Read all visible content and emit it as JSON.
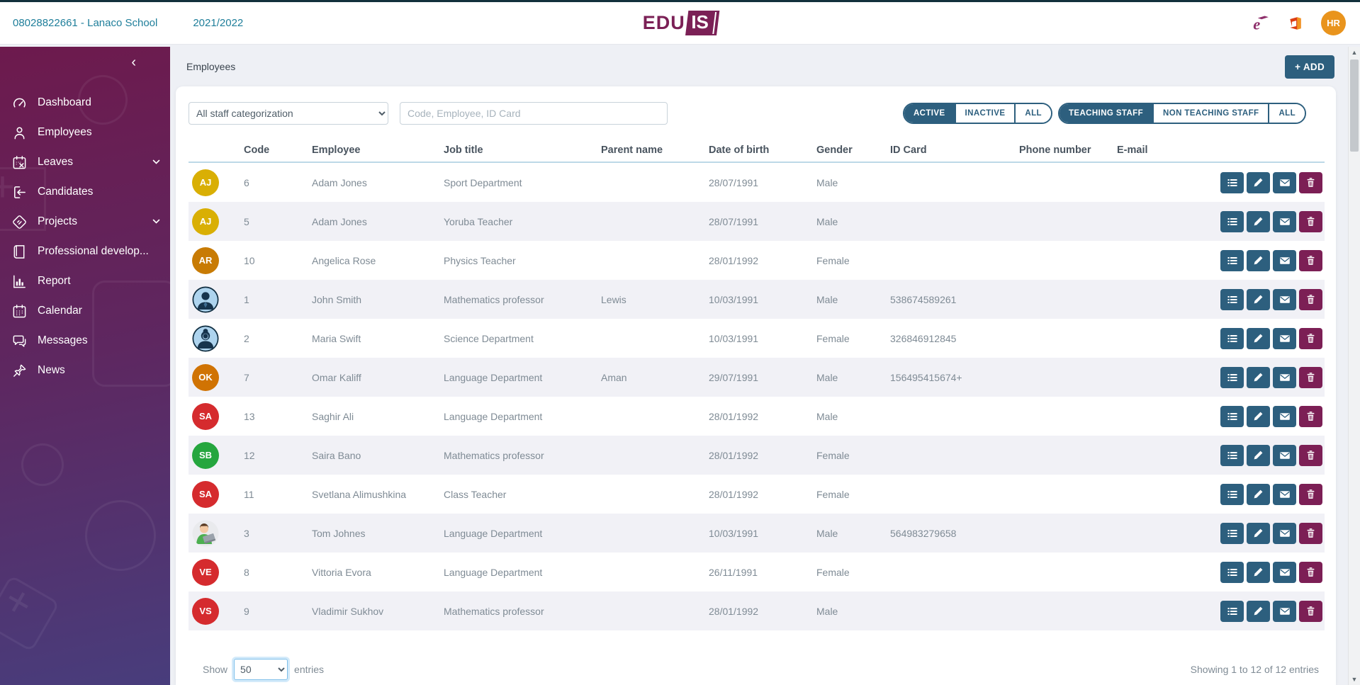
{
  "topbar": {
    "school_link": "08028822661 - Lanaco School",
    "school_year": "2021/2022",
    "logo_edu": "EDU",
    "logo_is": "IS",
    "user_initials": "HR"
  },
  "sidebar": {
    "items": [
      {
        "label": "Dashboard",
        "icon": "gauge",
        "expandable": false
      },
      {
        "label": "Employees",
        "icon": "user",
        "expandable": false
      },
      {
        "label": "Leaves",
        "icon": "calendar-x",
        "expandable": true
      },
      {
        "label": "Candidates",
        "icon": "sign-in",
        "expandable": false
      },
      {
        "label": "Projects",
        "icon": "tags",
        "expandable": true
      },
      {
        "label": "Professional develop...",
        "icon": "book",
        "expandable": false
      },
      {
        "label": "Report",
        "icon": "bar-chart",
        "expandable": false
      },
      {
        "label": "Calendar",
        "icon": "calendar",
        "expandable": false
      },
      {
        "label": "Messages",
        "icon": "chat",
        "expandable": false
      },
      {
        "label": "News",
        "icon": "pin",
        "expandable": false
      }
    ]
  },
  "page": {
    "title": "Employees",
    "add_button": "+ ADD"
  },
  "filters": {
    "staff_categorization_selected": "All staff categorization",
    "search_placeholder": "Code, Employee, ID Card",
    "status_group": [
      {
        "label": "ACTIVE",
        "selected": true
      },
      {
        "label": "INACTIVE",
        "selected": false
      },
      {
        "label": "ALL",
        "selected": false
      }
    ],
    "teaching_group": [
      {
        "label": "TEACHING STAFF",
        "selected": true
      },
      {
        "label": "NON TEACHING STAFF",
        "selected": false
      },
      {
        "label": "ALL",
        "selected": false
      }
    ]
  },
  "table": {
    "columns": [
      "Code",
      "Employee",
      "Job title",
      "Parent name",
      "Date of birth",
      "Gender",
      "ID Card",
      "Phone number",
      "E-mail"
    ],
    "rows": [
      {
        "avatar": {
          "type": "initials",
          "text": "AJ",
          "color": "#d9af04"
        },
        "code": "6",
        "employee": "Adam Jones",
        "job_title": "Sport Department",
        "parent_name": "",
        "date_of_birth": "28/07/1991",
        "gender": "Male",
        "id_card": "",
        "phone_number": "",
        "email": ""
      },
      {
        "avatar": {
          "type": "initials",
          "text": "AJ",
          "color": "#d9af04"
        },
        "code": "5",
        "employee": "Adam Jones",
        "job_title": "Yoruba Teacher",
        "parent_name": "",
        "date_of_birth": "28/07/1991",
        "gender": "Male",
        "id_card": "",
        "phone_number": "",
        "email": ""
      },
      {
        "avatar": {
          "type": "initials",
          "text": "AR",
          "color": "#c87b04"
        },
        "code": "10",
        "employee": "Angelica Rose",
        "job_title": "Physics Teacher",
        "parent_name": "",
        "date_of_birth": "28/01/1992",
        "gender": "Female",
        "id_card": "",
        "phone_number": "",
        "email": ""
      },
      {
        "avatar": {
          "type": "photo-male",
          "text": "",
          "color": ""
        },
        "code": "1",
        "employee": "John Smith",
        "job_title": "Mathematics professor",
        "parent_name": "Lewis",
        "date_of_birth": "10/03/1991",
        "gender": "Male",
        "id_card": "538674589261",
        "phone_number": "",
        "email": ""
      },
      {
        "avatar": {
          "type": "photo-female",
          "text": "",
          "color": ""
        },
        "code": "2",
        "employee": "Maria Swift",
        "job_title": "Science Department",
        "parent_name": "",
        "date_of_birth": "10/03/1991",
        "gender": "Female",
        "id_card": "326846912845",
        "phone_number": "",
        "email": ""
      },
      {
        "avatar": {
          "type": "initials",
          "text": "OK",
          "color": "#d07303"
        },
        "code": "7",
        "employee": "Omar Kaliff",
        "job_title": "Language Department",
        "parent_name": "Aman",
        "date_of_birth": "29/07/1991",
        "gender": "Male",
        "id_card": "156495415674+",
        "phone_number": "",
        "email": ""
      },
      {
        "avatar": {
          "type": "initials",
          "text": "SA",
          "color": "#d52b2e"
        },
        "code": "13",
        "employee": "Saghir Ali",
        "job_title": "Language Department",
        "parent_name": "",
        "date_of_birth": "28/01/1992",
        "gender": "Male",
        "id_card": "",
        "phone_number": "",
        "email": ""
      },
      {
        "avatar": {
          "type": "initials",
          "text": "SB",
          "color": "#25a63e"
        },
        "code": "12",
        "employee": "Saira Bano",
        "job_title": "Mathematics professor",
        "parent_name": "",
        "date_of_birth": "28/01/1992",
        "gender": "Female",
        "id_card": "",
        "phone_number": "",
        "email": ""
      },
      {
        "avatar": {
          "type": "initials",
          "text": "SA",
          "color": "#d52b2e"
        },
        "code": "11",
        "employee": "Svetlana Alimushkina",
        "job_title": "Class Teacher",
        "parent_name": "",
        "date_of_birth": "28/01/1992",
        "gender": "Female",
        "id_card": "",
        "phone_number": "",
        "email": ""
      },
      {
        "avatar": {
          "type": "photo-cartoon",
          "text": "",
          "color": ""
        },
        "code": "3",
        "employee": "Tom Johnes",
        "job_title": "Language Department",
        "parent_name": "",
        "date_of_birth": "10/03/1991",
        "gender": "Male",
        "id_card": "564983279658",
        "phone_number": "",
        "email": ""
      },
      {
        "avatar": {
          "type": "initials",
          "text": "VE",
          "color": "#d52b2e"
        },
        "code": "8",
        "employee": "Vittoria Evora",
        "job_title": "Language Department",
        "parent_name": "",
        "date_of_birth": "26/11/1991",
        "gender": "Female",
        "id_card": "",
        "phone_number": "",
        "email": ""
      },
      {
        "avatar": {
          "type": "initials",
          "text": "VS",
          "color": "#d52b2e"
        },
        "code": "9",
        "employee": "Vladimir Sukhov",
        "job_title": "Mathematics professor",
        "parent_name": "",
        "date_of_birth": "28/01/1992",
        "gender": "Male",
        "id_card": "",
        "phone_number": "",
        "email": ""
      }
    ]
  },
  "footer": {
    "show_label": "Show",
    "page_size": "50",
    "entries_label": "entries",
    "summary": "Showing 1 to 12 of 12 entries"
  },
  "colors": {
    "accent_teal": "#2d5f7e",
    "accent_maroon": "#7c1f55",
    "logo_purple": "#7b2056",
    "link_teal": "#1e7e9a",
    "avatar_orange": "#e9941d",
    "row_alt": "#f1f1f6"
  }
}
